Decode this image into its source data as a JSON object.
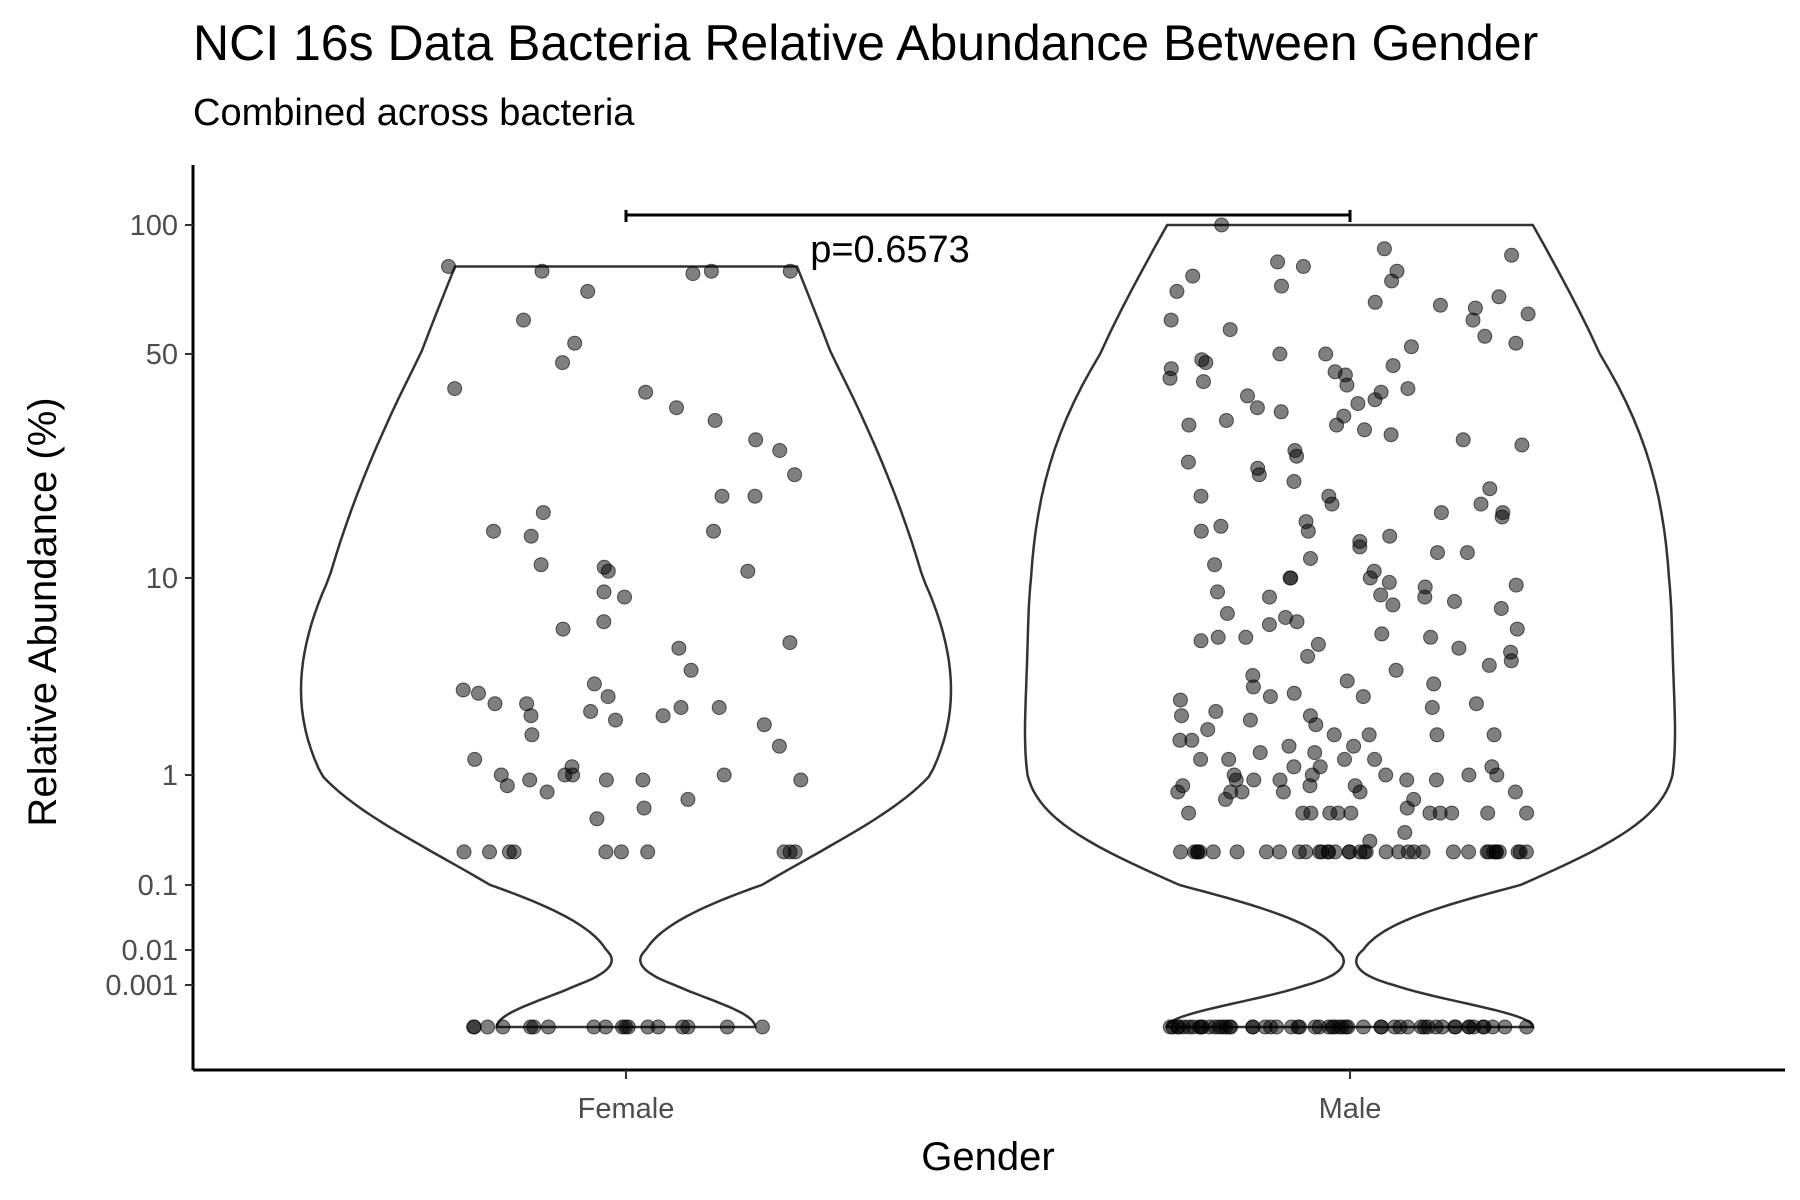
{
  "chart_data": {
    "type": "violin",
    "title": "NCI 16s Data Bacteria Relative Abundance Between Gender",
    "subtitle": "Combined across bacteria",
    "xlabel": "Gender",
    "ylabel": "Relative Abundance (%)",
    "categories": [
      "Female",
      "Male"
    ],
    "y_ticks": [
      {
        "value": 0.001,
        "label": "0.001"
      },
      {
        "value": 0.01,
        "label": "0.01"
      },
      {
        "value": 0.1,
        "label": "0.1"
      },
      {
        "value": 1,
        "label": "1"
      },
      {
        "value": 10,
        "label": "10"
      },
      {
        "value": 50,
        "label": "50"
      },
      {
        "value": 100,
        "label": "100"
      }
    ],
    "y_scale": "pseudo-log",
    "y_range": [
      0,
      150
    ],
    "annotation": {
      "text": "p=0.6573",
      "between": [
        "Female",
        "Male"
      ]
    },
    "point_color": "#000000",
    "point_opacity": 0.5,
    "violin_outline": "#333333",
    "grid": false,
    "series": [
      {
        "category": "Female",
        "values": [
          0.0001,
          0.0001,
          0.0001,
          0.0001,
          0.0001,
          0.0001,
          0.0001,
          0.0001,
          0.0001,
          0.0001,
          0.0001,
          0.0001,
          0.0001,
          0.0001,
          0.0001,
          0.0001,
          0.0001,
          0.0001,
          0.2,
          0.2,
          0.2,
          0.2,
          0.2,
          0.2,
          0.2,
          0.2,
          0.2,
          0.2,
          0.4,
          0.5,
          0.6,
          0.7,
          0.8,
          0.9,
          0.9,
          0.9,
          0.9,
          1,
          1,
          1,
          1,
          1.1,
          1.2,
          1.4,
          1.6,
          1.8,
          1.9,
          2.0,
          2.0,
          2.1,
          2.2,
          2.2,
          2.3,
          2.3,
          2.5,
          2.6,
          2.7,
          2.9,
          3.4,
          4.4,
          4.7,
          5.5,
          6.0,
          8.0,
          8.5,
          10.5,
          10.5,
          10.8,
          11,
          13.5,
          14,
          14,
          16,
          18,
          18,
          21,
          25,
          27,
          31,
          34,
          38,
          39,
          47,
          53,
          60,
          70,
          77,
          78,
          78,
          78,
          80
        ]
      },
      {
        "category": "Male",
        "values": [
          0.0001,
          0.0001,
          0.0001,
          0.0001,
          0.0001,
          0.0001,
          0.0001,
          0.0001,
          0.0001,
          0.0001,
          0.0001,
          0.0001,
          0.0001,
          0.0001,
          0.0001,
          0.0001,
          0.0001,
          0.0001,
          0.0001,
          0.0001,
          0.0001,
          0.0001,
          0.0001,
          0.0001,
          0.0001,
          0.0001,
          0.0001,
          0.0001,
          0.0001,
          0.0001,
          0.0001,
          0.0001,
          0.0001,
          0.0001,
          0.0001,
          0.0001,
          0.0001,
          0.0001,
          0.0001,
          0.0001,
          0.0001,
          0.0001,
          0.0001,
          0.0001,
          0.0001,
          0.0001,
          0.0001,
          0.0001,
          0.0001,
          0.0001,
          0.0001,
          0.0001,
          0.0001,
          0.0001,
          0.0001,
          0.2,
          0.2,
          0.2,
          0.2,
          0.2,
          0.2,
          0.2,
          0.2,
          0.2,
          0.2,
          0.2,
          0.2,
          0.2,
          0.2,
          0.2,
          0.2,
          0.2,
          0.2,
          0.2,
          0.2,
          0.2,
          0.2,
          0.2,
          0.2,
          0.2,
          0.2,
          0.2,
          0.2,
          0.2,
          0.2,
          0.2,
          0.2,
          0.2,
          0.2,
          0.2,
          0.2,
          0.2,
          0.25,
          0.3,
          0.45,
          0.45,
          0.45,
          0.45,
          0.45,
          0.45,
          0.45,
          0.45,
          0.45,
          0.45,
          0.45,
          0.5,
          0.6,
          0.6,
          0.7,
          0.7,
          0.7,
          0.7,
          0.7,
          0.7,
          0.8,
          0.8,
          0.8,
          0.9,
          0.9,
          0.9,
          0.9,
          0.9,
          1,
          1,
          1,
          1,
          1,
          1.1,
          1.1,
          1.1,
          1.2,
          1.2,
          1.2,
          1.2,
          1.3,
          1.3,
          1.4,
          1.4,
          1.5,
          1.5,
          1.6,
          1.6,
          1.6,
          1.6,
          1.7,
          1.8,
          1.9,
          2.0,
          2.0,
          2.1,
          2.2,
          2.3,
          2.4,
          2.5,
          2.5,
          2.6,
          2.8,
          2.9,
          3.0,
          3.2,
          3.4,
          3.6,
          3.8,
          4.0,
          4.2,
          4.4,
          4.6,
          4.8,
          5.0,
          5.0,
          5.0,
          5.2,
          5.5,
          5.8,
          6.0,
          6.3,
          6.6,
          7.0,
          7.3,
          7.6,
          8.0,
          8.0,
          8.2,
          8.5,
          9.0,
          9.2,
          9.5,
          10,
          10,
          10,
          10.5,
          11,
          11.5,
          12,
          12,
          12.5,
          13,
          13.5,
          14,
          14,
          14.5,
          15,
          15.5,
          16,
          16,
          17,
          17,
          18,
          18,
          19,
          20,
          21,
          22,
          23,
          24,
          25,
          26,
          27,
          28,
          29,
          30,
          30,
          31,
          32,
          33,
          34,
          35,
          36,
          37,
          38,
          39,
          40,
          41,
          42,
          43,
          44,
          45,
          46,
          47,
          48,
          50,
          50,
          52,
          53,
          55,
          57,
          60,
          60,
          62,
          64,
          65,
          66,
          68,
          70,
          72,
          74,
          76,
          78,
          80,
          82,
          85,
          88,
          100
        ]
      }
    ]
  }
}
